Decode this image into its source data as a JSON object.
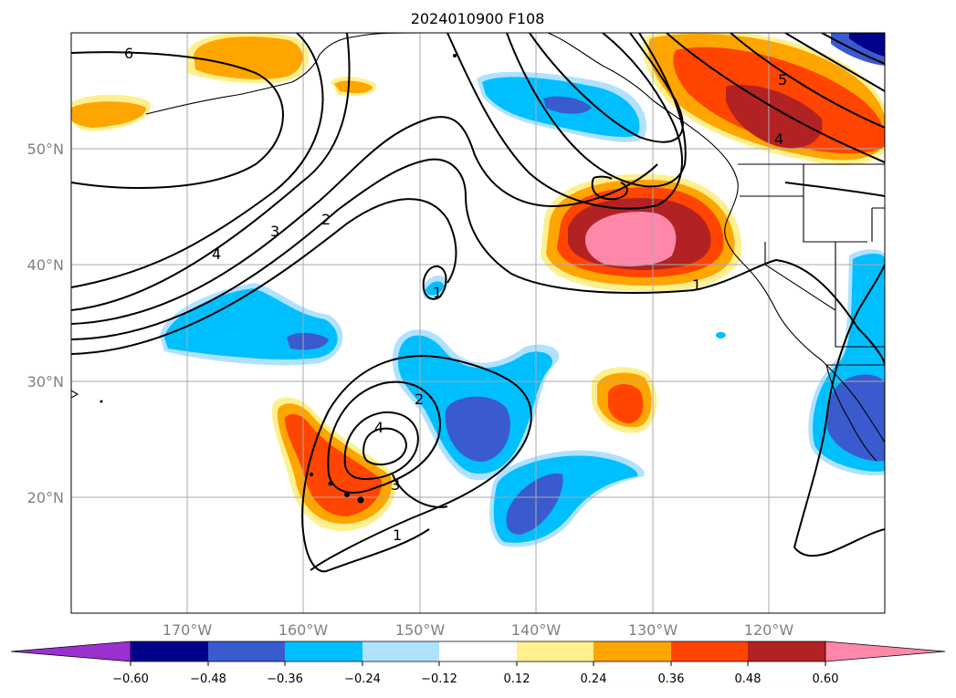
{
  "title": "2024010900 F108",
  "lat_labels": [
    "50°N",
    "40°N",
    "30°N",
    "20°N"
  ],
  "lon_labels": [
    "170°W",
    "160°W",
    "150°W",
    "140°W",
    "130°W",
    "120°W"
  ],
  "contour_labels": [
    "6",
    "5",
    "4",
    "2",
    "3",
    "4",
    "1",
    "4",
    "2",
    "3",
    "1",
    "1"
  ],
  "colorbar": {
    "tick_labels": [
      "−0.60",
      "−0.48",
      "−0.36",
      "−0.24",
      "−0.12",
      "0.12",
      "0.24",
      "0.36",
      "0.48",
      "0.60"
    ],
    "bins": [
      {
        "color": "#9a30d0"
      },
      {
        "color": "#00008b"
      },
      {
        "color": "#3a5bcd"
      },
      {
        "color": "#00bfff"
      },
      {
        "color": "#b0e2ff"
      },
      {
        "color": "#ffffff"
      },
      {
        "color": "#fff08f"
      },
      {
        "color": "#ffa500"
      },
      {
        "color": "#ff4500"
      },
      {
        "color": "#b22222"
      },
      {
        "color": "#ff88aa"
      }
    ]
  },
  "colors": {
    "pos1": "#fff08f",
    "pos2": "#ffa500",
    "pos3": "#ff4500",
    "pos4": "#b22222",
    "pos5": "#ff88aa",
    "neg1": "#b0e2ff",
    "neg2": "#00bfff",
    "neg3": "#3a5bcd",
    "neg4": "#00008b"
  }
}
